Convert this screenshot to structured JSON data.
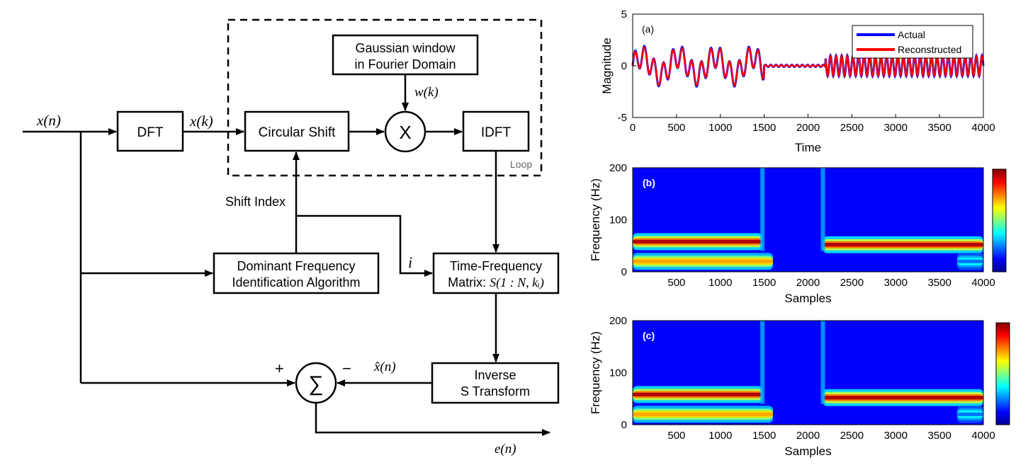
{
  "diagram": {
    "blocks": {
      "dft": "DFT",
      "circular_shift": "Circular Shift",
      "gaussian_line1": "Gaussian window",
      "gaussian_line2": "in Fourier Domain",
      "multiply": "X",
      "idft": "IDFT",
      "dominant_line1": "Dominant Frequency",
      "dominant_line2": "Identification Algorithm",
      "tf_line1": "Time-Frequency",
      "tf_line2_prefix": "Matrix: ",
      "tf_line2_math": "S(1 : N, kᵢ)",
      "inverse_line1": "Inverse",
      "inverse_line2": "S Transform",
      "sum": "∑"
    },
    "labels": {
      "input": "x(n)",
      "dft_out": "x(k)",
      "window": "w(k)",
      "loop": "Loop",
      "shift_index": "Shift Index",
      "index_i": "i",
      "plus": "+",
      "minus": "−",
      "xhat": "x̂(n)",
      "error": "e(n)"
    }
  },
  "chart_data": [
    {
      "type": "line",
      "panel_label": "(a)",
      "xlabel": "Time",
      "ylabel": "Magnitude",
      "xlim": [
        0,
        4000
      ],
      "ylim": [
        -5,
        5
      ],
      "xticks": [
        0,
        500,
        1000,
        1500,
        2000,
        2500,
        3000,
        3500,
        4000
      ],
      "yticks": [
        -5,
        0,
        5
      ],
      "legend_position": "top-right",
      "series": [
        {
          "name": "Actual",
          "color": "#0000ff",
          "segments": [
            {
              "x_range": [
                0,
                1500
              ],
              "amplitude": 2.0
            },
            {
              "x_range": [
                1500,
                2200
              ],
              "amplitude": 0.1
            },
            {
              "x_range": [
                2200,
                4000
              ],
              "amplitude": 1.0
            }
          ]
        },
        {
          "name": "Reconstructed",
          "color": "#ff0000",
          "segments": [
            {
              "x_range": [
                0,
                1500
              ],
              "amplitude": 1.9
            },
            {
              "x_range": [
                1500,
                2200
              ],
              "amplitude": 0.08
            },
            {
              "x_range": [
                2200,
                4000
              ],
              "amplitude": 0.95
            }
          ]
        }
      ]
    },
    {
      "type": "heatmap",
      "panel_label": "(b)",
      "xlabel": "Samples",
      "ylabel": "Frequency (Hz)",
      "xlim": [
        0,
        4000
      ],
      "ylim": [
        0,
        200
      ],
      "xticks": [
        500,
        1000,
        1500,
        2000,
        2500,
        3000,
        3500,
        4000
      ],
      "yticks": [
        0,
        100,
        200
      ],
      "colormap": "jet",
      "bands": [
        {
          "freq_hz": 58,
          "x_range": [
            0,
            1480
          ],
          "intensity": 1.0
        },
        {
          "freq_hz": 20,
          "x_range": [
            0,
            1600
          ],
          "intensity": 0.85
        },
        {
          "freq_hz": 52,
          "x_range": [
            2170,
            4000
          ],
          "intensity": 1.0
        },
        {
          "freq_hz": 20,
          "x_range": [
            3700,
            4000
          ],
          "intensity": 0.4
        }
      ]
    },
    {
      "type": "heatmap",
      "panel_label": "(c)",
      "xlabel": "Samples",
      "ylabel": "Frequency (Hz)",
      "xlim": [
        0,
        4000
      ],
      "ylim": [
        0,
        200
      ],
      "xticks": [
        500,
        1000,
        1500,
        2000,
        2500,
        3000,
        3500,
        4000
      ],
      "yticks": [
        0,
        100,
        200
      ],
      "colormap": "jet",
      "bands": [
        {
          "freq_hz": 58,
          "x_range": [
            0,
            1480
          ],
          "intensity": 1.0
        },
        {
          "freq_hz": 20,
          "x_range": [
            0,
            1600
          ],
          "intensity": 0.85
        },
        {
          "freq_hz": 52,
          "x_range": [
            2170,
            4000
          ],
          "intensity": 1.0
        },
        {
          "freq_hz": 20,
          "x_range": [
            3700,
            4000
          ],
          "intensity": 0.4
        }
      ]
    }
  ]
}
